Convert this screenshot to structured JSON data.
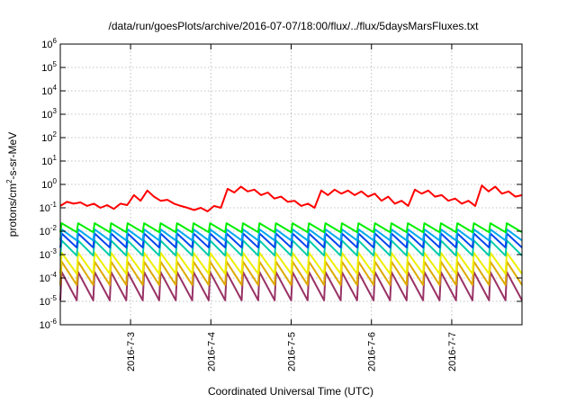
{
  "chart_data": {
    "type": "line",
    "title": "/data/run/goesPlots/archive/2016-07-07/18:00/flux/../flux/5daysMarsFluxes.txt",
    "xlabel": "Coordinated Universal Time (UTC)",
    "ylabel": "protons/cm²-s-sr-MeV",
    "ylabel_parts": {
      "pre": "protons/cm",
      "sup": "2",
      "post": "-s-sr-MeV"
    },
    "yscale": "log",
    "ylim": [
      1e-06,
      1000000
    ],
    "xlim": [
      "2016-07-02T03:00",
      "2016-07-07T21:00"
    ],
    "grid": true,
    "x_ticks": [
      "2016-7-3",
      "2016-7-4",
      "2016-7-5",
      "2016-7-6",
      "2016-7-7"
    ],
    "y_ticks": [
      {
        "base": "10",
        "exp": "-6"
      },
      {
        "base": "10",
        "exp": "-5"
      },
      {
        "base": "10",
        "exp": "-4"
      },
      {
        "base": "10",
        "exp": "-3"
      },
      {
        "base": "10",
        "exp": "-2"
      },
      {
        "base": "10",
        "exp": "-1"
      },
      {
        "base": "10",
        "exp": "0"
      },
      {
        "base": "10",
        "exp": "1"
      },
      {
        "base": "10",
        "exp": "2"
      },
      {
        "base": "10",
        "exp": "3"
      },
      {
        "base": "10",
        "exp": "4"
      },
      {
        "base": "10",
        "exp": "5"
      },
      {
        "base": "10",
        "exp": "6"
      }
    ],
    "series": [
      {
        "color": "#ff0000",
        "x": [
          "2016-07-02T03:00",
          "2016-07-02T05:00",
          "2016-07-02T07:00",
          "2016-07-02T09:00",
          "2016-07-02T11:00",
          "2016-07-02T13:00",
          "2016-07-02T15:00",
          "2016-07-02T17:00",
          "2016-07-02T19:00",
          "2016-07-02T21:00",
          "2016-07-02T23:00",
          "2016-07-03T01:00",
          "2016-07-03T03:00",
          "2016-07-03T05:00",
          "2016-07-03T07:00",
          "2016-07-03T09:00",
          "2016-07-03T11:00",
          "2016-07-03T13:00",
          "2016-07-03T15:00",
          "2016-07-03T17:00",
          "2016-07-03T19:00",
          "2016-07-03T21:00",
          "2016-07-03T23:00",
          "2016-07-04T01:00",
          "2016-07-04T03:00",
          "2016-07-04T05:00",
          "2016-07-04T07:00",
          "2016-07-04T09:00",
          "2016-07-04T11:00",
          "2016-07-04T13:00",
          "2016-07-04T15:00",
          "2016-07-04T17:00",
          "2016-07-04T19:00",
          "2016-07-04T21:00",
          "2016-07-04T23:00",
          "2016-07-05T01:00",
          "2016-07-05T03:00",
          "2016-07-05T05:00",
          "2016-07-05T07:00",
          "2016-07-05T09:00",
          "2016-07-05T11:00",
          "2016-07-05T13:00",
          "2016-07-05T15:00",
          "2016-07-05T17:00",
          "2016-07-05T19:00",
          "2016-07-05T21:00",
          "2016-07-05T23:00",
          "2016-07-06T01:00",
          "2016-07-06T03:00",
          "2016-07-06T05:00",
          "2016-07-06T07:00",
          "2016-07-06T09:00",
          "2016-07-06T11:00",
          "2016-07-06T13:00",
          "2016-07-06T15:00",
          "2016-07-06T17:00",
          "2016-07-06T19:00",
          "2016-07-06T21:00",
          "2016-07-06T23:00",
          "2016-07-07T01:00",
          "2016-07-07T03:00",
          "2016-07-07T05:00",
          "2016-07-07T07:00",
          "2016-07-07T09:00",
          "2016-07-07T11:00",
          "2016-07-07T13:00",
          "2016-07-07T15:00",
          "2016-07-07T17:00",
          "2016-07-07T19:00",
          "2016-07-07T21:00"
        ],
        "values": [
          0.12,
          0.18,
          0.15,
          0.17,
          0.12,
          0.15,
          0.1,
          0.13,
          0.09,
          0.15,
          0.13,
          0.35,
          0.2,
          0.55,
          0.3,
          0.2,
          0.22,
          0.15,
          0.12,
          0.1,
          0.08,
          0.1,
          0.07,
          0.12,
          0.1,
          0.65,
          0.45,
          0.8,
          0.5,
          0.6,
          0.35,
          0.45,
          0.25,
          0.3,
          0.18,
          0.2,
          0.12,
          0.15,
          0.1,
          0.55,
          0.35,
          0.6,
          0.4,
          0.55,
          0.35,
          0.5,
          0.3,
          0.4,
          0.2,
          0.3,
          0.15,
          0.2,
          0.12,
          0.6,
          0.4,
          0.55,
          0.3,
          0.35,
          0.2,
          0.25,
          0.15,
          0.2,
          0.12,
          0.9,
          0.5,
          0.8,
          0.4,
          0.5,
          0.3,
          0.35
        ]
      },
      {
        "color": "#00ee00",
        "sawtooth": {
          "base": 0.009,
          "peak": 0.022,
          "cycles": 28
        }
      },
      {
        "color": "#00aaee",
        "sawtooth": {
          "base": 0.004,
          "peak": 0.012,
          "cycles": 28
        }
      },
      {
        "color": "#0044ee",
        "sawtooth": {
          "base": 0.002,
          "peak": 0.008,
          "cycles": 28
        }
      },
      {
        "color": "#00ccaa",
        "sawtooth": {
          "base": 0.0009,
          "peak": 0.004,
          "cycles": 28
        }
      },
      {
        "color": "#eeee00",
        "sawtooth": {
          "base": 0.00015,
          "peak": 0.0012,
          "cycles": 28
        }
      },
      {
        "color": "#ddaa00",
        "sawtooth": {
          "base": 5e-05,
          "peak": 0.0005,
          "cycles": 28
        }
      },
      {
        "color": "#993366",
        "sawtooth": {
          "base": 1.1e-05,
          "peak": 0.00018,
          "cycles": 28
        }
      }
    ]
  }
}
